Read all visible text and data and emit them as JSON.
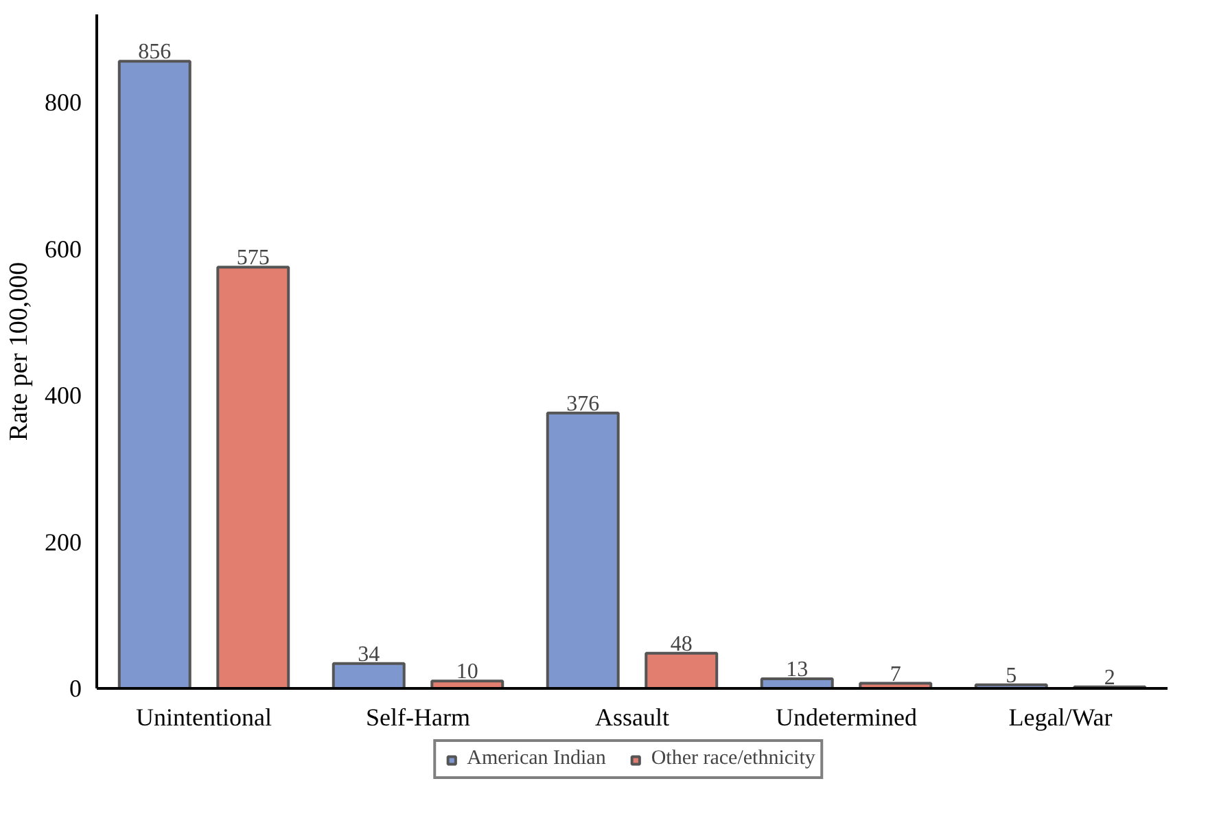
{
  "chart_data": {
    "type": "bar",
    "ylabel": "Rate per 100,000",
    "categories": [
      "Unintentional",
      "Self-Harm",
      "Assault",
      "Undetermined",
      "Legal/War"
    ],
    "series": [
      {
        "name": "American Indian",
        "color": "#7f97cf",
        "values": [
          856,
          34,
          376,
          13,
          5
        ]
      },
      {
        "name": "Other race/ethnicity",
        "color": "#e27e70",
        "values": [
          575,
          10,
          48,
          7,
          2
        ]
      }
    ],
    "ylim": [
      0,
      920
    ],
    "yticks": [
      0,
      200,
      400,
      600,
      800
    ],
    "grid": false,
    "legend": "bottom",
    "data_labels": true
  }
}
